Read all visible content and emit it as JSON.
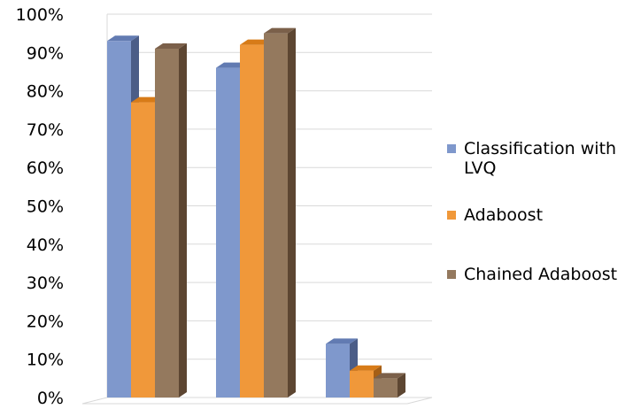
{
  "chart_data": {
    "type": "bar",
    "categories": [
      "",
      "",
      ""
    ],
    "series": [
      {
        "name": "Classification with LVQ",
        "values": [
          93,
          86,
          14
        ]
      },
      {
        "name": "Adaboost",
        "values": [
          77,
          92,
          7
        ]
      },
      {
        "name": "Chained Adaboost",
        "values": [
          91,
          95,
          5
        ]
      }
    ],
    "yticks": [
      "0%",
      "10%",
      "20%",
      "30%",
      "40%",
      "50%",
      "60%",
      "70%",
      "80%",
      "90%",
      "100%"
    ],
    "ylim": [
      0,
      100
    ],
    "grid": true,
    "legend": "right",
    "three_d": true,
    "colors": {
      "series": [
        "#7f98cc",
        "#f0983a",
        "#94795e"
      ],
      "series_side": [
        "#4b5d87",
        "#a55f16",
        "#5d4632"
      ],
      "series_top": [
        "#627bb2",
        "#d77b18",
        "#7b604a"
      ],
      "grid": "#d9d9d9"
    }
  }
}
